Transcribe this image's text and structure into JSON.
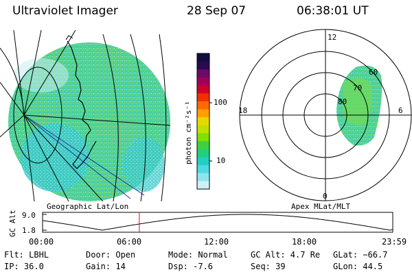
{
  "header": {
    "instrument": "Ultraviolet Imager",
    "date": "28 Sep 07",
    "time": "06:38:01 UT"
  },
  "panels": {
    "left_label": "Geographic Lat/Lon",
    "right_label": "Apex MLat/MLT",
    "polar_labels": {
      "top": "12",
      "bottom": "0",
      "left": "18",
      "right": "6",
      "r60": "60",
      "r70": "70",
      "r80": "80"
    }
  },
  "colorbar": {
    "unit_label": "photon cm⁻²s⁻¹",
    "ticks": [
      "100",
      "10"
    ],
    "colors": [
      "#101040",
      "#2a0a50",
      "#6a0a6a",
      "#a0005a",
      "#d0002a",
      "#f03000",
      "#ff6a00",
      "#ffa000",
      "#e8d800",
      "#c0e000",
      "#80e000",
      "#40d040",
      "#20d080",
      "#20d0c0",
      "#50d8e0",
      "#90e4f0",
      "#d0eff8"
    ]
  },
  "altitude_plot": {
    "axis_label": "GC Alt",
    "y_ticks": [
      "9.0",
      "1.8"
    ],
    "x_ticks": [
      "00:00",
      "06:00",
      "12:00",
      "18:00",
      "23:59"
    ],
    "current_marker_hour": 6.63
  },
  "info": {
    "filter": "Flt: LBHL",
    "door": "Door: Open",
    "mode": "Mode: Normal",
    "gc_alt": "GC Alt: 4.7 Re",
    "glat": "GLat: −66.7",
    "ip": "IP: 36.0",
    "gain": "Gain: 14",
    "dsp": "Dsp:    -7.6",
    "seq": "Seq: 39",
    "glon": "GLon:  44.5"
  }
}
